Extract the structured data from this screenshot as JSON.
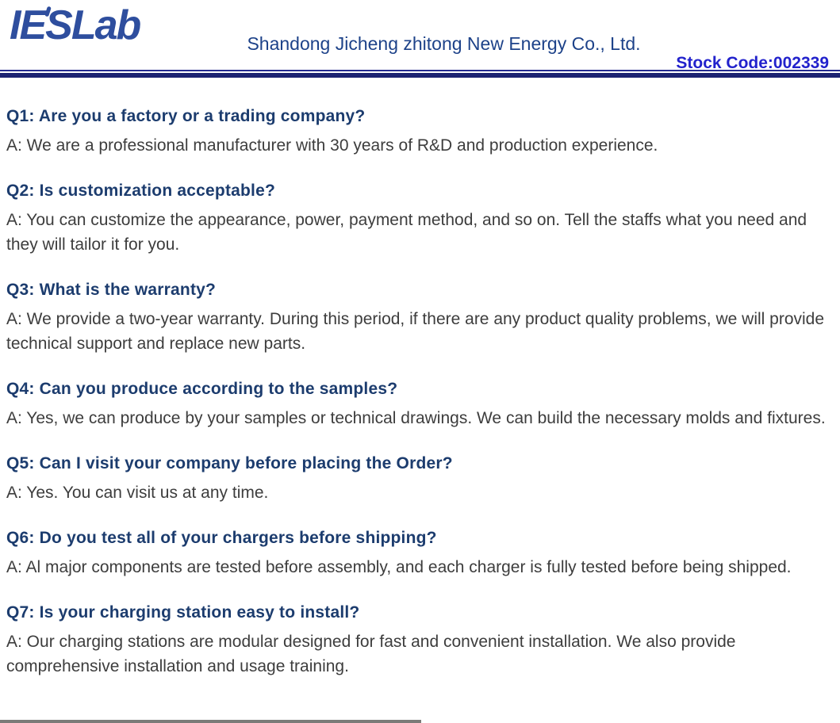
{
  "header": {
    "logo_text": "IESLab",
    "company_name": "Shandong Jicheng zhitong New Energy Co., Ltd.",
    "stock_code": "Stock Code:002339"
  },
  "colors": {
    "logo_blue": "#2e4e9e",
    "company_name_blue": "#1d4289",
    "stock_code_blue": "#2222cc",
    "rule_navy": "#1b2272",
    "question_navy": "#1c3c6e",
    "answer_gray": "#3d3d3d"
  },
  "faq": {
    "items": [
      {
        "question": "Q1: Are you a factory or a trading company?",
        "answer": "A: We are a professional manufacturer with 30 years of R&D and production experience."
      },
      {
        "question": "Q2: Is customization acceptable?",
        "answer": "A: You can customize the appearance, power, payment method, and so on. Tell the staffs what you need and they will tailor it for you."
      },
      {
        "question": "Q3: What is the warranty?",
        "answer": "A: We provide a two-year warranty. During this period, if there are any product quality problems, we will provide technical support and replace new parts."
      },
      {
        "question": "Q4: Can you produce according to the samples?",
        "answer": "A: Yes, we can produce by your samples or technical drawings. We can build the necessary molds and fixtures."
      },
      {
        "question": "Q5: Can I visit your company before placing the Order?",
        "answer": "A: Yes. You can visit us at any time."
      },
      {
        "question": "Q6: Do you test all of your chargers before shipping?",
        "answer": "A: Al major components are tested before assembly, and each charger is fully tested before being shipped."
      },
      {
        "question": "Q7: Is your charging station easy to install?",
        "answer": "A: Our charging stations are modular designed for fast and convenient installation. We also provide comprehensive installation and usage training."
      }
    ]
  }
}
